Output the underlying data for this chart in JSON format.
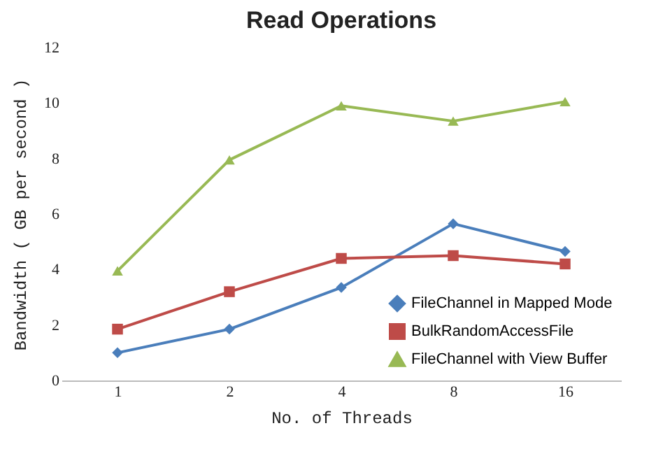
{
  "chart_data": {
    "type": "line",
    "title": "Read Operations",
    "xlabel": "No. of Threads",
    "ylabel": "Bandwidth ( GB per second )",
    "categories": [
      "1",
      "2",
      "4",
      "8",
      "16"
    ],
    "ylim": [
      0,
      12
    ],
    "yticks": [
      0,
      2,
      4,
      6,
      8,
      10,
      12
    ],
    "grid": false,
    "legend": "bottom right",
    "line_style": "solid",
    "series": [
      {
        "name": "FileChannel in Mapped Mode",
        "color": "#4a7ebb",
        "marker": "diamond",
        "values": [
          1.0,
          1.85,
          3.35,
          5.65,
          4.65
        ]
      },
      {
        "name": "BulkRandomAccessFile",
        "color": "#be4b48",
        "marker": "square",
        "values": [
          1.85,
          3.2,
          4.4,
          4.5,
          4.2
        ]
      },
      {
        "name": "FileChannel with View Buffer",
        "color": "#98b954",
        "marker": "triangle",
        "values": [
          3.95,
          7.95,
          9.9,
          9.35,
          10.05
        ]
      }
    ]
  }
}
